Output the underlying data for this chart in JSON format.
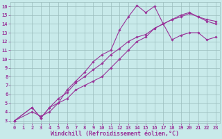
{
  "xlabel": "Windchill (Refroidissement éolien,°C)",
  "xlim": [
    0,
    23
  ],
  "ylim": [
    3,
    16
  ],
  "xticks": [
    0,
    1,
    2,
    3,
    4,
    5,
    6,
    7,
    8,
    9,
    10,
    11,
    12,
    13,
    14,
    15,
    16,
    17,
    18,
    19,
    20,
    21,
    22,
    23
  ],
  "yticks": [
    3,
    4,
    5,
    6,
    7,
    8,
    9,
    10,
    11,
    12,
    13,
    14,
    15,
    16
  ],
  "bg_color": "#c8eaea",
  "line_color": "#993399",
  "grid_color": "#9bbdbd",
  "line1_x": [
    0,
    2,
    3,
    4,
    5,
    6,
    7,
    8,
    9,
    10,
    11,
    12,
    13,
    14,
    15,
    16,
    17,
    18,
    19,
    20,
    21,
    22,
    23
  ],
  "line1_y": [
    3.0,
    4.5,
    3.3,
    4.5,
    5.0,
    6.5,
    7.5,
    8.5,
    9.7,
    10.5,
    11.0,
    13.3,
    14.8,
    16.1,
    15.3,
    16.0,
    14.0,
    12.2,
    12.7,
    13.0,
    13.0,
    12.2,
    12.5
  ],
  "line2_x": [
    0,
    2,
    3,
    4,
    5,
    6,
    7,
    8,
    9,
    10,
    11,
    12,
    13,
    14,
    15,
    16,
    17,
    18,
    19,
    20,
    21,
    22,
    23
  ],
  "line2_y": [
    3.0,
    4.5,
    3.3,
    4.5,
    5.5,
    6.2,
    7.3,
    8.0,
    8.8,
    9.5,
    10.5,
    11.2,
    12.0,
    12.5,
    12.8,
    13.5,
    14.0,
    14.5,
    14.8,
    15.2,
    14.8,
    14.5,
    14.3
  ],
  "line3_x": [
    0,
    2,
    3,
    4,
    5,
    6,
    7,
    8,
    9,
    10,
    11,
    12,
    13,
    14,
    15,
    16,
    17,
    18,
    19,
    20,
    21,
    22,
    23
  ],
  "line3_y": [
    3.0,
    4.0,
    3.5,
    4.0,
    5.0,
    5.5,
    6.5,
    7.0,
    7.5,
    8.0,
    9.0,
    10.0,
    11.0,
    12.0,
    12.5,
    13.5,
    14.0,
    14.5,
    15.0,
    15.3,
    14.8,
    14.3,
    14.0
  ],
  "marker": "D",
  "markersize": 1.8,
  "linewidth": 0.8,
  "tick_fontsize": 5.0,
  "xlabel_fontsize": 6.0,
  "tick_color": "#993399",
  "axis_label_color": "#993399",
  "spine_color": "#9bbdbd"
}
